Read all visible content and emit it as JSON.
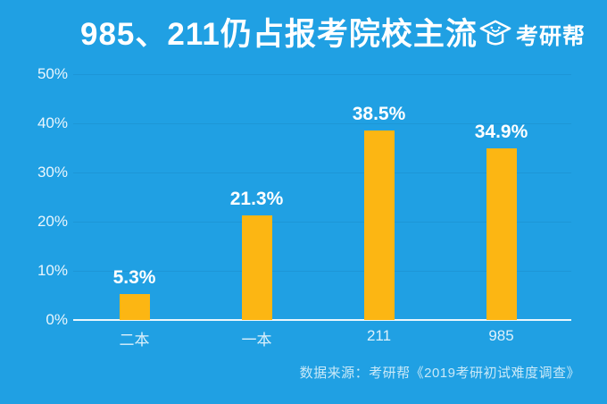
{
  "header": {
    "title": "985、211仍占报考院校主流",
    "logo_text": "考研帮"
  },
  "chart_data": {
    "type": "bar",
    "title": "985、211仍占报考院校主流",
    "categories": [
      "二本",
      "一本",
      "211",
      "985"
    ],
    "values": [
      5.3,
      21.3,
      38.5,
      34.9
    ],
    "value_labels": [
      "5.3%",
      "21.3%",
      "38.5%",
      "34.9%"
    ],
    "y_ticks": [
      0,
      10,
      20,
      30,
      40,
      50
    ],
    "y_tick_labels": [
      "0%",
      "10%",
      "20%",
      "30%",
      "40%",
      "50%"
    ],
    "ylim": [
      0,
      50
    ],
    "xlabel": "",
    "ylabel": "",
    "grid": true,
    "legend_position": "none",
    "bar_color": "#FCB613",
    "background_color": "#20A0E3",
    "label_color": "#FFFFFF"
  },
  "footer": {
    "source": "数据来源：考研帮《2019考研初试难度调查》"
  },
  "colors": {
    "background": "#20A0E3",
    "bar": "#FCB613",
    "title_text": "#FFFFFF",
    "axis_text": "#EAF6FD",
    "footer_text": "#C9E9F8"
  }
}
